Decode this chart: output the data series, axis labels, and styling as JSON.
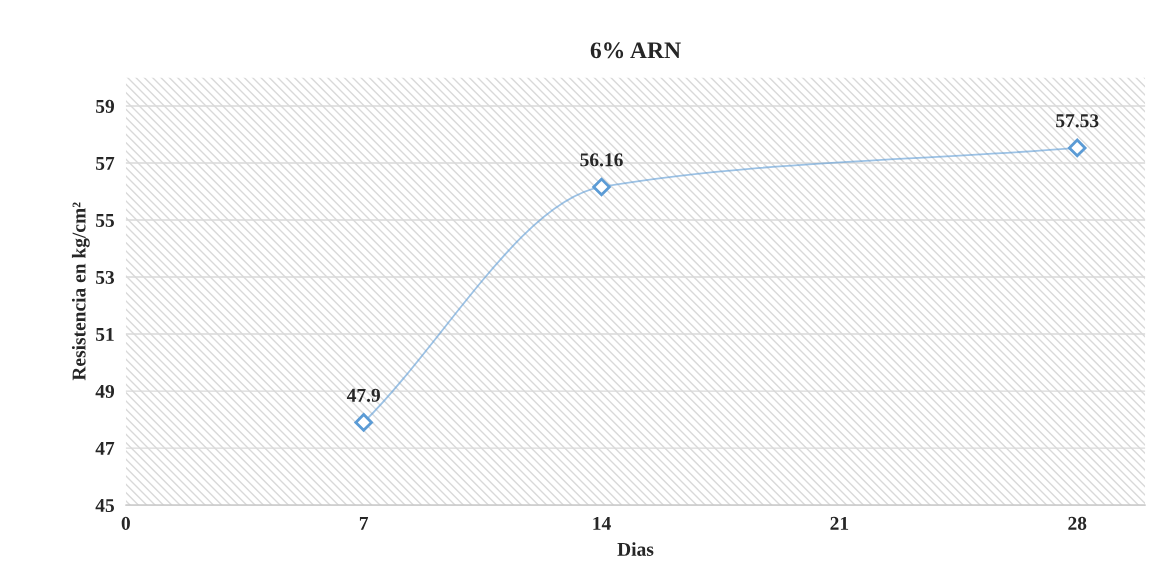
{
  "chart_data": {
    "type": "line",
    "title": "6% ARN",
    "xlabel": "Dias",
    "ylabel": "Resistencia en kg/cm²",
    "x": [
      7,
      14,
      28
    ],
    "series": [
      {
        "color": "#5b9bd5",
        "values": [
          47.9,
          56.16,
          57.53
        ]
      }
    ],
    "xlim": [
      0,
      30
    ],
    "xticks": [
      0,
      7,
      14,
      21,
      28
    ],
    "ylim": [
      45,
      60
    ],
    "yticks": [
      45,
      47,
      49,
      51,
      53,
      55,
      57,
      59
    ],
    "grid": "y",
    "marker": "diamond",
    "line_style": "solid",
    "data_labels": true,
    "legend": false
  }
}
